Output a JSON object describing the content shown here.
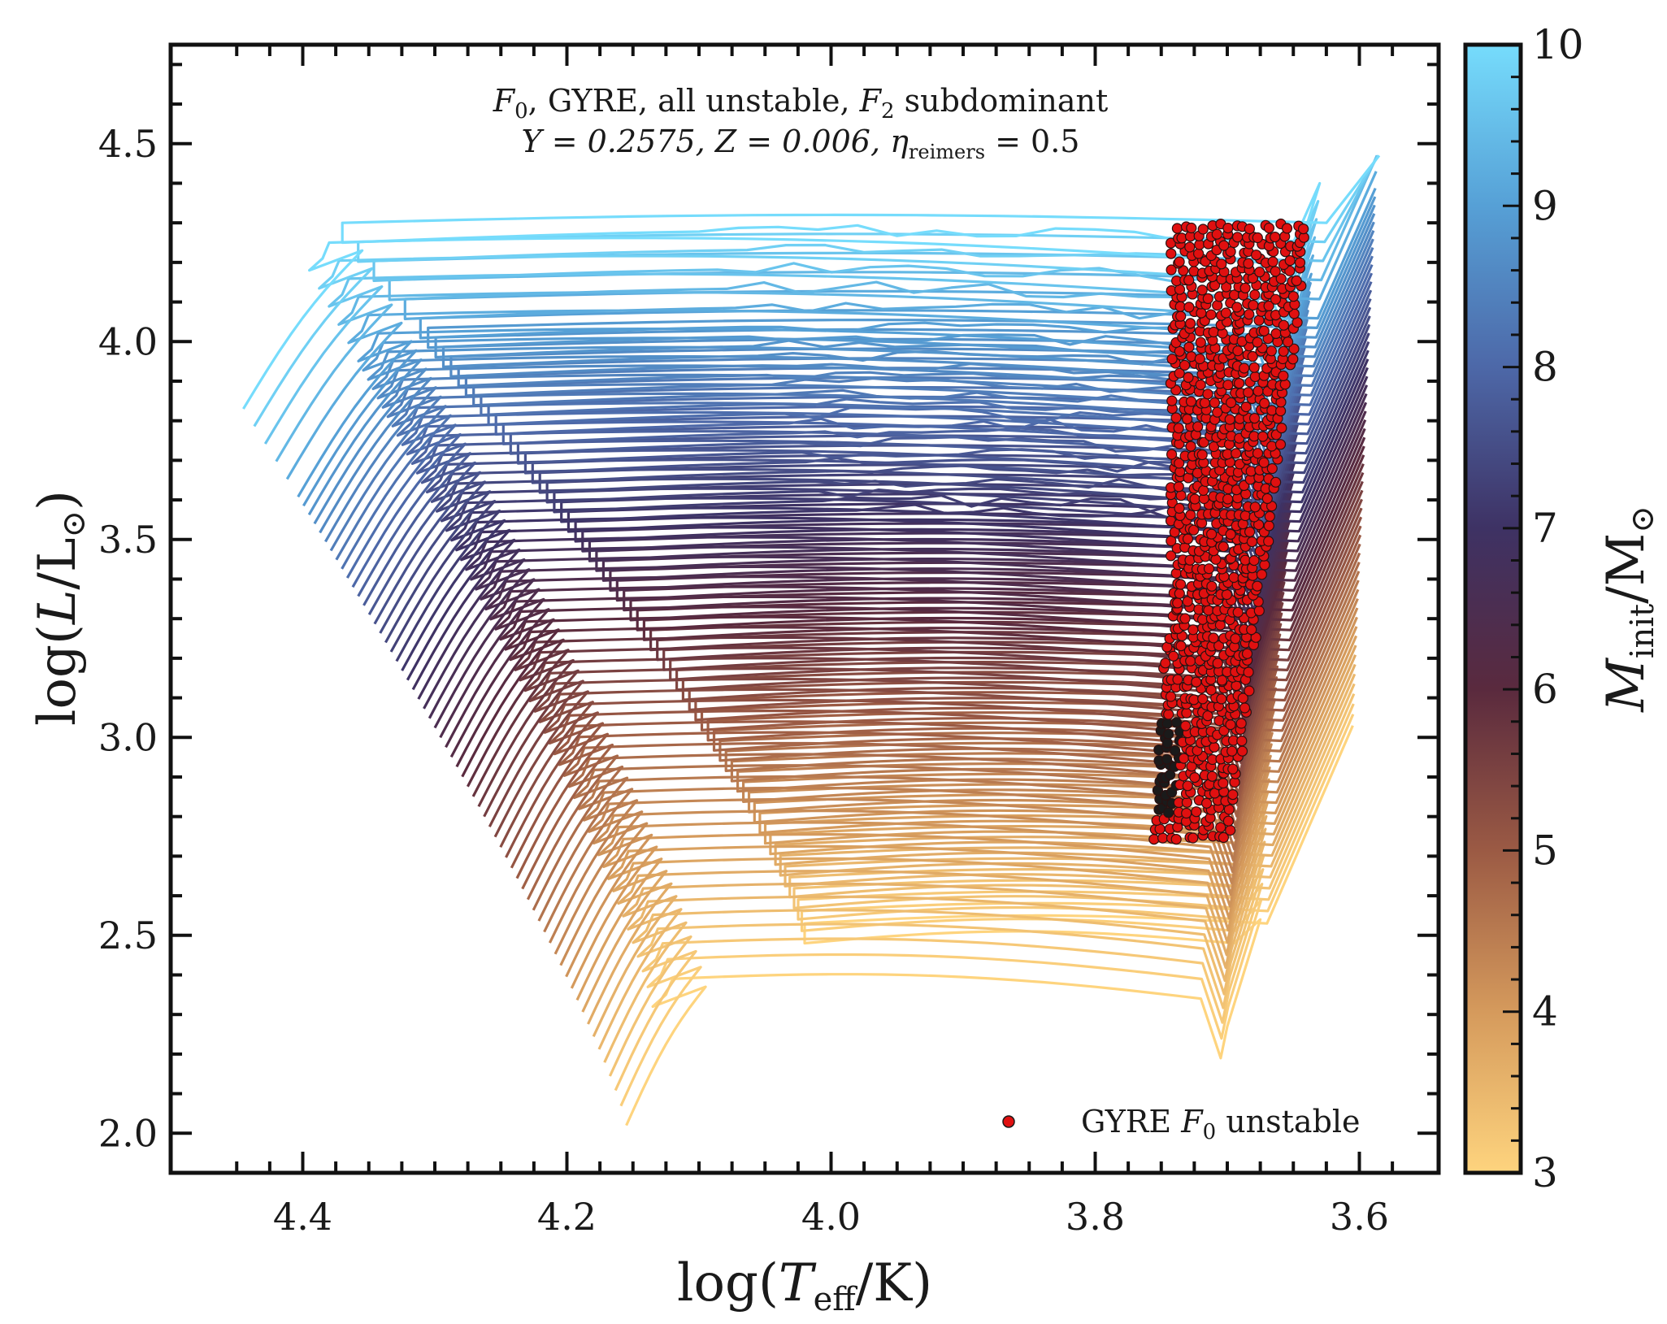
{
  "chart_data": {
    "type": "line",
    "title": "",
    "annotations": [
      "F_0, GYRE, all unstable, F_2 subdominant",
      "Y = 0.2575, Z = 0.006, η_reimers = 0.5"
    ],
    "annotation_parts": {
      "line1": {
        "f0_var": "F",
        "f0_sub": "0",
        "mid": ", GYRE, all unstable, ",
        "f2_var": "F",
        "f2_sub": "2",
        "end": " subdominant"
      },
      "line2": {
        "y": "Y = 0.2575, ",
        "z": "Z = 0.006, ",
        "eta": "η",
        "eta_sub": "reimers",
        "eta_end": " = 0.5"
      }
    },
    "xlabel": "log(T_eff/K)",
    "xlabel_parts": {
      "pre": "log(",
      "var": "T",
      "sub": "eff",
      "post": "/K)"
    },
    "ylabel": "log(L/L_⊙)",
    "ylabel_parts": {
      "pre": "log(",
      "var": "L",
      "post": "/L",
      "sub": "⊙",
      "close": ")"
    },
    "xlim": [
      4.5,
      3.54
    ],
    "ylim": [
      1.9,
      4.75
    ],
    "x_inverted": true,
    "x_ticks": [
      "4.4",
      "4.2",
      "4.0",
      "3.8",
      "3.6"
    ],
    "x_tick_values": [
      4.4,
      4.2,
      4.0,
      3.8,
      3.6
    ],
    "y_ticks": [
      "2.0",
      "2.5",
      "3.0",
      "3.5",
      "4.0",
      "4.5"
    ],
    "y_tick_values": [
      2.0,
      2.5,
      3.0,
      3.5,
      4.0,
      4.5
    ],
    "grid": false,
    "legend": {
      "placement": "lower-right",
      "entries": [
        {
          "pre": "GYRE ",
          "var": "F",
          "sub": "0",
          "post": " unstable",
          "color": "#e01010",
          "edge": "#1a1a1a"
        }
      ]
    },
    "colorbar": {
      "label_parts": {
        "var": "M",
        "sub": "init",
        "post": "/M",
        "sub2": "⊙"
      },
      "label": "M_init/M_⊙",
      "range": [
        3,
        10
      ],
      "ticks": [
        "3",
        "4",
        "5",
        "6",
        "7",
        "8",
        "9",
        "10"
      ],
      "tick_values": [
        3,
        4,
        5,
        6,
        7,
        8,
        9,
        10
      ],
      "colormap_stops": [
        "#fed47e",
        "#d59a5c",
        "#9b5a44",
        "#5a2a3e",
        "#3e3264",
        "#4d68a8",
        "#56a0d6",
        "#76dcfc"
      ]
    },
    "series_description": "evolutionary tracks for initial masses 3 to 10 M_sun, color-coded by mass",
    "track_masses": [
      3.0,
      3.1,
      3.2,
      3.3,
      3.4,
      3.5,
      3.6,
      3.7,
      3.8,
      3.9,
      4.0,
      4.1,
      4.2,
      4.3,
      4.4,
      4.5,
      4.6,
      4.7,
      4.8,
      4.9,
      5.0,
      5.1,
      5.2,
      5.3,
      5.4,
      5.5,
      5.6,
      5.7,
      5.8,
      5.9,
      6.0,
      6.1,
      6.2,
      6.3,
      6.4,
      6.5,
      6.6,
      6.7,
      6.8,
      6.9,
      7.0,
      7.1,
      7.2,
      7.3,
      7.4,
      7.5,
      7.6,
      7.7,
      7.8,
      7.9,
      8.0,
      8.1,
      8.2,
      8.3,
      8.4,
      8.5,
      8.6,
      8.7,
      8.8,
      8.9,
      9.0,
      9.2,
      9.4,
      9.6,
      9.8,
      10.0
    ],
    "track_model": {
      "comment": "approximate per-mass track shape, in data units",
      "zams_logT": [
        4.155,
        4.445
      ],
      "zams_logL": [
        2.02,
        3.83
      ],
      "mslength_logT": 0.02,
      "mslength_logL": 0.35,
      "rgb_base_logT": [
        3.705,
        3.66
      ],
      "rgb_base_logL": [
        2.2,
        3.8
      ],
      "rgb_tip_logT": 3.585,
      "blue_loop_logL": [
        2.48,
        4.25
      ],
      "blue_loop_hot_logT": [
        4.02,
        4.37
      ]
    },
    "unstable_region": {
      "logT_range": [
        3.63,
        3.78
      ],
      "logL_range": [
        2.75,
        4.3
      ],
      "marker": "red circle, dark edge",
      "dense_black_segments_logL": [
        2.8,
        3.05
      ]
    }
  }
}
